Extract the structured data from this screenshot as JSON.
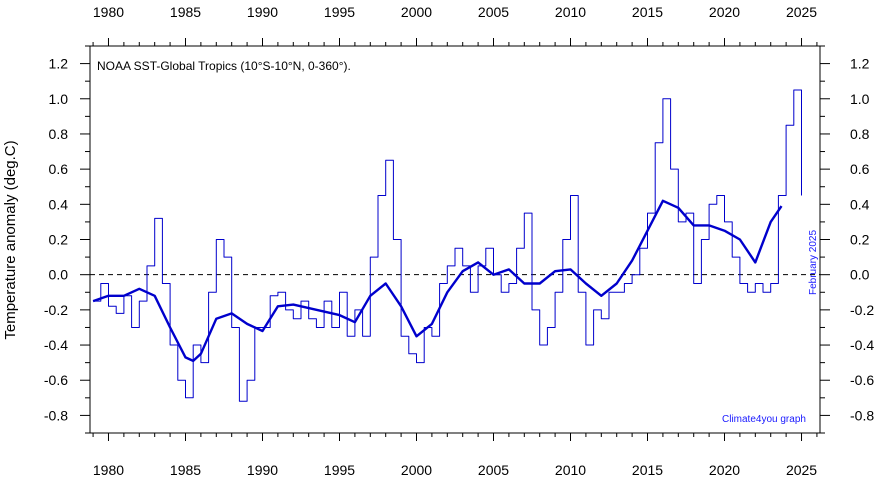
{
  "chart_data": {
    "type": "line",
    "title": "NOAA SST-Global Tropics (10°S-10°N, 0-360°).",
    "xlabel": "",
    "ylabel": "Temperature anomaly (deg.C)",
    "xlim": [
      1978.8,
      2026.2
    ],
    "ylim": [
      -0.9,
      1.3
    ],
    "x_ticks": [
      "1980",
      "1985",
      "1990",
      "1995",
      "2000",
      "2005",
      "2010",
      "2015",
      "2020",
      "2025"
    ],
    "y_ticks": [
      "-0.8",
      "-0.6",
      "-0.4",
      "-0.2",
      "0.0",
      "0.2",
      "0.4",
      "0.6",
      "0.8",
      "1.0",
      "1.2"
    ],
    "zero_line": "dashed",
    "grid": false,
    "annotation_date": "February 2025",
    "credit": "Climate4you graph",
    "series": [
      {
        "style": "thin step line",
        "color": "#0000cc",
        "x": [
          1979.0,
          1979.5,
          1980.0,
          1980.5,
          1981.0,
          1981.5,
          1982.0,
          1982.5,
          1983.0,
          1983.5,
          1984.0,
          1984.5,
          1985.0,
          1985.5,
          1986.0,
          1986.5,
          1987.0,
          1987.5,
          1988.0,
          1988.5,
          1989.0,
          1989.5,
          1990.0,
          1990.5,
          1991.0,
          1991.5,
          1992.0,
          1992.5,
          1993.0,
          1993.5,
          1994.0,
          1994.5,
          1995.0,
          1995.5,
          1996.0,
          1996.5,
          1997.0,
          1997.5,
          1998.0,
          1998.5,
          1999.0,
          1999.5,
          2000.0,
          2000.5,
          2001.0,
          2001.5,
          2002.0,
          2002.5,
          2003.0,
          2003.5,
          2004.0,
          2004.5,
          2005.0,
          2005.5,
          2006.0,
          2006.5,
          2007.0,
          2007.5,
          2008.0,
          2008.5,
          2009.0,
          2009.5,
          2010.0,
          2010.5,
          2011.0,
          2011.5,
          2012.0,
          2012.5,
          2013.0,
          2013.5,
          2014.0,
          2014.5,
          2015.0,
          2015.5,
          2016.0,
          2016.5,
          2017.0,
          2017.5,
          2018.0,
          2018.5,
          2019.0,
          2019.5,
          2020.0,
          2020.5,
          2021.0,
          2021.5,
          2022.0,
          2022.5,
          2023.0,
          2023.5,
          2024.0,
          2024.5,
          2025.0
        ],
        "y": [
          -0.15,
          -0.05,
          -0.18,
          -0.22,
          -0.12,
          -0.3,
          -0.15,
          0.05,
          0.32,
          -0.05,
          -0.4,
          -0.6,
          -0.7,
          -0.4,
          -0.5,
          -0.1,
          0.2,
          0.1,
          -0.3,
          -0.72,
          -0.6,
          -0.3,
          -0.3,
          -0.12,
          -0.1,
          -0.2,
          -0.25,
          -0.15,
          -0.25,
          -0.3,
          -0.15,
          -0.3,
          -0.1,
          -0.35,
          -0.2,
          -0.35,
          0.1,
          0.45,
          0.65,
          0.2,
          -0.35,
          -0.45,
          -0.5,
          -0.3,
          -0.35,
          -0.05,
          0.05,
          0.15,
          0.05,
          -0.1,
          0.05,
          0.15,
          0.0,
          -0.1,
          -0.05,
          0.15,
          0.35,
          -0.2,
          -0.4,
          -0.3,
          -0.1,
          0.2,
          0.45,
          -0.1,
          -0.4,
          -0.2,
          -0.25,
          -0.1,
          -0.1,
          -0.05,
          0.0,
          0.15,
          0.35,
          0.75,
          1.0,
          0.6,
          0.3,
          0.35,
          -0.05,
          0.2,
          0.4,
          0.45,
          0.3,
          0.1,
          -0.05,
          -0.1,
          -0.05,
          -0.1,
          -0.05,
          0.45,
          0.85,
          1.05,
          0.45
        ]
      },
      {
        "style": "thick smoothed line",
        "color": "#0000cc",
        "x": [
          1979.0,
          1980.0,
          1981.0,
          1982.0,
          1983.0,
          1984.0,
          1985.0,
          1985.5,
          1986.0,
          1987.0,
          1988.0,
          1989.0,
          1990.0,
          1991.0,
          1992.0,
          1993.0,
          1994.0,
          1995.0,
          1996.0,
          1997.0,
          1998.0,
          1999.0,
          2000.0,
          2001.0,
          2002.0,
          2003.0,
          2004.0,
          2005.0,
          2006.0,
          2007.0,
          2008.0,
          2009.0,
          2010.0,
          2011.0,
          2012.0,
          2013.0,
          2014.0,
          2015.0,
          2016.0,
          2017.0,
          2018.0,
          2019.0,
          2020.0,
          2021.0,
          2022.0,
          2023.0,
          2023.7
        ],
        "y": [
          -0.15,
          -0.12,
          -0.12,
          -0.08,
          -0.12,
          -0.3,
          -0.47,
          -0.49,
          -0.45,
          -0.25,
          -0.22,
          -0.28,
          -0.32,
          -0.18,
          -0.17,
          -0.19,
          -0.21,
          -0.23,
          -0.27,
          -0.12,
          -0.05,
          -0.18,
          -0.35,
          -0.28,
          -0.1,
          0.02,
          0.07,
          0.0,
          0.03,
          -0.05,
          -0.05,
          0.02,
          0.03,
          -0.05,
          -0.12,
          -0.05,
          0.08,
          0.25,
          0.42,
          0.38,
          0.28,
          0.28,
          0.25,
          0.2,
          0.07,
          0.3,
          0.39
        ]
      }
    ]
  }
}
